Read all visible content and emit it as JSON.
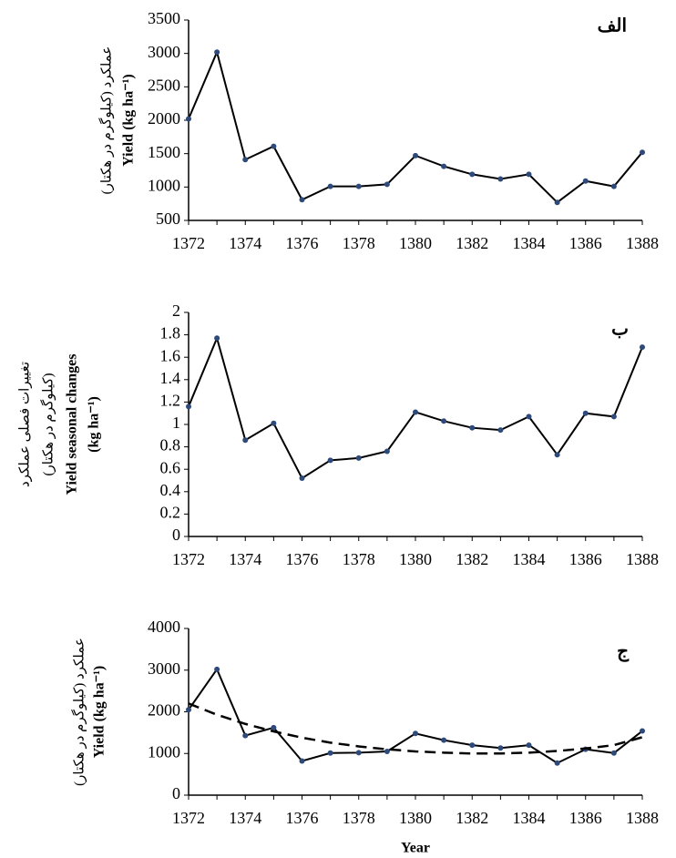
{
  "chart_data": [
    {
      "type": "line",
      "title": "الف",
      "ylabel": [
        "عملکرد (کیلوگرم در هکتار)",
        "Yield (kg ha⁻¹)"
      ],
      "x": [
        1372,
        1373,
        1374,
        1375,
        1376,
        1377,
        1378,
        1379,
        1380,
        1381,
        1382,
        1383,
        1384,
        1385,
        1386,
        1387,
        1388
      ],
      "series": [
        {
          "color": "#000000",
          "marker_color": "#2e4a7a",
          "values": [
            2020,
            3020,
            1410,
            1610,
            810,
            1010,
            1010,
            1040,
            1470,
            1310,
            1190,
            1120,
            1190,
            770,
            1090,
            1010,
            1520
          ]
        }
      ],
      "xlim": [
        1372,
        1388
      ],
      "xticks": [
        1372,
        1374,
        1376,
        1378,
        1380,
        1382,
        1384,
        1386,
        1388
      ],
      "ylim": [
        500,
        3500
      ],
      "yticks": [
        500,
        1000,
        1500,
        2000,
        2500,
        3000,
        3500
      ],
      "grid": false
    },
    {
      "type": "line",
      "title": "ب",
      "ylabel": [
        "تغییرات فصلی عملکرد",
        "(کیلوگرم در هکتار)",
        "Yield seasonal changes",
        "(kg ha⁻¹)"
      ],
      "x": [
        1372,
        1373,
        1374,
        1375,
        1376,
        1377,
        1378,
        1379,
        1380,
        1381,
        1382,
        1383,
        1384,
        1385,
        1386,
        1387,
        1388
      ],
      "series": [
        {
          "color": "#000000",
          "marker_color": "#2e4a7a",
          "values": [
            1.16,
            1.77,
            0.86,
            1.01,
            0.52,
            0.68,
            0.7,
            0.76,
            1.11,
            1.03,
            0.97,
            0.95,
            1.07,
            0.73,
            1.1,
            1.07,
            1.69
          ]
        }
      ],
      "xlim": [
        1372,
        1388
      ],
      "xticks": [
        1372,
        1374,
        1376,
        1378,
        1380,
        1382,
        1384,
        1386,
        1388
      ],
      "ylim": [
        0,
        2
      ],
      "yticks": [
        0,
        0.2,
        0.4,
        0.6,
        0.8,
        1,
        1.2,
        1.4,
        1.6,
        1.8,
        2
      ],
      "grid": false
    },
    {
      "type": "line",
      "title": "ج",
      "ylabel": [
        "عملکرد (کیلوگرم در هکتار)",
        "Yield (kg ha⁻¹)"
      ],
      "xlabel": "Year",
      "x": [
        1372,
        1373,
        1374,
        1375,
        1376,
        1377,
        1378,
        1379,
        1380,
        1381,
        1382,
        1383,
        1384,
        1385,
        1386,
        1387,
        1388
      ],
      "series": [
        {
          "color": "#000000",
          "marker_color": "#2e4a7a",
          "values": [
            2050,
            3020,
            1430,
            1620,
            820,
            1010,
            1020,
            1050,
            1480,
            1320,
            1200,
            1130,
            1200,
            770,
            1100,
            1010,
            1540
          ]
        },
        {
          "color": "#000000",
          "dashed": true,
          "values": [
            2200,
            1930,
            1710,
            1530,
            1380,
            1260,
            1170,
            1100,
            1050,
            1020,
            1000,
            1000,
            1020,
            1060,
            1120,
            1200,
            1390
          ]
        }
      ],
      "xlim": [
        1372,
        1388
      ],
      "xticks": [
        1372,
        1374,
        1376,
        1378,
        1380,
        1382,
        1384,
        1386,
        1388
      ],
      "ylim": [
        0,
        4000
      ],
      "yticks": [
        0,
        1000,
        2000,
        3000,
        4000
      ],
      "grid": false
    }
  ]
}
